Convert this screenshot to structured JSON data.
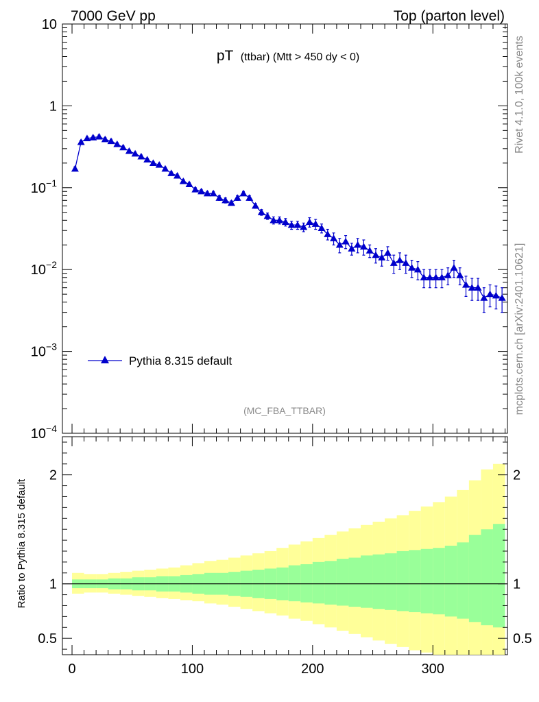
{
  "header": {
    "left": "7000 GeV pp",
    "right": "Top (parton level)"
  },
  "side_labels": {
    "rivet": "Rivet 4.1.0,  100k events",
    "mcplots": "mcplots.cern.ch [arXiv:2401.10621]"
  },
  "chart_data": [
    {
      "type": "scatter",
      "panel": "main",
      "title_main": "pT",
      "title_sub": "(ttbar) (Mtt > 450 dy < 0)",
      "analysis_tag": "(MC_FBA_TTBAR)",
      "yscale": "log",
      "xlim": [
        -8,
        362
      ],
      "ylim": [
        0.0001,
        10
      ],
      "y_tick_labels": [
        {
          "value": 10,
          "base": "10",
          "exp": ""
        },
        {
          "value": 1,
          "base": "1",
          "exp": ""
        },
        {
          "value": 0.1,
          "base": "10",
          "exp": "−1"
        },
        {
          "value": 0.01,
          "base": "10",
          "exp": "−2"
        },
        {
          "value": 0.001,
          "base": "10",
          "exp": "−3"
        },
        {
          "value": 0.0001,
          "base": "10",
          "exp": "−4"
        }
      ],
      "legend": [
        {
          "name": "Pythia 8.315 default",
          "color": "#0000cc",
          "marker": "triangle-up"
        }
      ],
      "series": [
        {
          "name": "Pythia 8.315 default",
          "color": "#0000cc",
          "x": [
            2.5,
            7.5,
            12.5,
            17.5,
            22.5,
            27.5,
            32.5,
            37.5,
            42.5,
            47.5,
            52.5,
            57.5,
            62.5,
            67.5,
            72.5,
            77.5,
            82.5,
            87.5,
            92.5,
            97.5,
            102.5,
            107.5,
            112.5,
            117.5,
            122.5,
            127.5,
            132.5,
            137.5,
            142.5,
            147.5,
            152.5,
            157.5,
            162.5,
            167.5,
            172.5,
            177.5,
            182.5,
            187.5,
            192.5,
            197.5,
            202.5,
            207.5,
            212.5,
            217.5,
            222.5,
            227.5,
            232.5,
            237.5,
            242.5,
            247.5,
            252.5,
            257.5,
            262.5,
            267.5,
            272.5,
            277.5,
            282.5,
            287.5,
            292.5,
            297.5,
            302.5,
            307.5,
            312.5,
            317.5,
            322.5,
            327.5,
            332.5,
            337.5,
            342.5,
            347.5,
            352.5,
            357.5
          ],
          "y": [
            0.17,
            0.36,
            0.4,
            0.41,
            0.42,
            0.39,
            0.37,
            0.34,
            0.31,
            0.28,
            0.26,
            0.24,
            0.22,
            0.2,
            0.19,
            0.17,
            0.15,
            0.14,
            0.12,
            0.11,
            0.095,
            0.09,
            0.085,
            0.085,
            0.075,
            0.07,
            0.065,
            0.075,
            0.085,
            0.075,
            0.06,
            0.05,
            0.045,
            0.04,
            0.04,
            0.038,
            0.035,
            0.035,
            0.033,
            0.038,
            0.036,
            0.032,
            0.027,
            0.024,
            0.02,
            0.022,
            0.018,
            0.02,
            0.019,
            0.017,
            0.015,
            0.014,
            0.016,
            0.012,
            0.013,
            0.012,
            0.0105,
            0.01,
            0.008,
            0.008,
            0.008,
            0.008,
            0.0085,
            0.0105,
            0.0085,
            0.0065,
            0.006,
            0.006,
            0.0045,
            0.005,
            0.0048,
            0.0045
          ],
          "yerr": [
            0.01,
            0.02,
            0.02,
            0.02,
            0.02,
            0.02,
            0.02,
            0.015,
            0.015,
            0.013,
            0.012,
            0.011,
            0.01,
            0.009,
            0.009,
            0.008,
            0.007,
            0.007,
            0.006,
            0.006,
            0.005,
            0.005,
            0.005,
            0.005,
            0.005,
            0.005,
            0.004,
            0.005,
            0.005,
            0.005,
            0.004,
            0.004,
            0.004,
            0.004,
            0.004,
            0.004,
            0.004,
            0.004,
            0.004,
            0.005,
            0.005,
            0.004,
            0.004,
            0.004,
            0.004,
            0.004,
            0.003,
            0.004,
            0.004,
            0.003,
            0.003,
            0.003,
            0.003,
            0.003,
            0.003,
            0.003,
            0.0025,
            0.0025,
            0.002,
            0.002,
            0.002,
            0.002,
            0.002,
            0.0025,
            0.002,
            0.0018,
            0.0018,
            0.0018,
            0.0015,
            0.0015,
            0.0015,
            0.0015
          ]
        }
      ]
    },
    {
      "type": "area",
      "panel": "ratio",
      "ylabel": "Ratio to Pythia 8.315 default",
      "xlim": [
        -8,
        362
      ],
      "ylim": [
        0.35,
        2.35
      ],
      "x_tick_labels": [
        0,
        100,
        200,
        300
      ],
      "y_tick_labels": [
        0.5,
        1,
        2
      ],
      "reference_line": 1,
      "bin_edges": [
        0,
        10,
        20,
        30,
        40,
        50,
        60,
        70,
        80,
        90,
        100,
        110,
        120,
        130,
        140,
        150,
        160,
        170,
        180,
        190,
        200,
        210,
        220,
        230,
        240,
        250,
        260,
        270,
        280,
        290,
        300,
        310,
        320,
        330,
        340,
        350,
        360
      ],
      "bands": [
        {
          "name": "1-sigma",
          "color": "#99ff99",
          "upper": [
            1.04,
            1.04,
            1.04,
            1.05,
            1.05,
            1.06,
            1.06,
            1.07,
            1.07,
            1.08,
            1.09,
            1.1,
            1.1,
            1.11,
            1.12,
            1.13,
            1.14,
            1.15,
            1.17,
            1.18,
            1.2,
            1.21,
            1.23,
            1.24,
            1.26,
            1.27,
            1.28,
            1.3,
            1.31,
            1.32,
            1.33,
            1.35,
            1.38,
            1.45,
            1.5,
            1.55
          ],
          "lower": [
            0.96,
            0.96,
            0.96,
            0.95,
            0.95,
            0.94,
            0.94,
            0.93,
            0.93,
            0.92,
            0.91,
            0.9,
            0.9,
            0.89,
            0.88,
            0.87,
            0.86,
            0.85,
            0.84,
            0.83,
            0.82,
            0.81,
            0.8,
            0.79,
            0.78,
            0.77,
            0.76,
            0.75,
            0.74,
            0.73,
            0.72,
            0.7,
            0.68,
            0.65,
            0.62,
            0.6
          ]
        },
        {
          "name": "2-sigma",
          "color": "#ffff99",
          "upper": [
            1.1,
            1.09,
            1.09,
            1.1,
            1.11,
            1.12,
            1.13,
            1.14,
            1.15,
            1.17,
            1.19,
            1.21,
            1.22,
            1.24,
            1.26,
            1.28,
            1.3,
            1.33,
            1.36,
            1.39,
            1.42,
            1.45,
            1.48,
            1.51,
            1.54,
            1.57,
            1.6,
            1.63,
            1.67,
            1.71,
            1.75,
            1.8,
            1.86,
            1.95,
            2.05,
            2.1
          ],
          "lower": [
            0.91,
            0.92,
            0.92,
            0.91,
            0.9,
            0.89,
            0.88,
            0.87,
            0.86,
            0.85,
            0.84,
            0.82,
            0.81,
            0.79,
            0.77,
            0.75,
            0.73,
            0.71,
            0.68,
            0.66,
            0.63,
            0.6,
            0.57,
            0.54,
            0.51,
            0.48,
            0.45,
            0.42,
            0.39,
            0.37,
            0.35,
            0.35,
            0.35,
            0.35,
            0.35,
            0.35
          ]
        }
      ]
    }
  ]
}
